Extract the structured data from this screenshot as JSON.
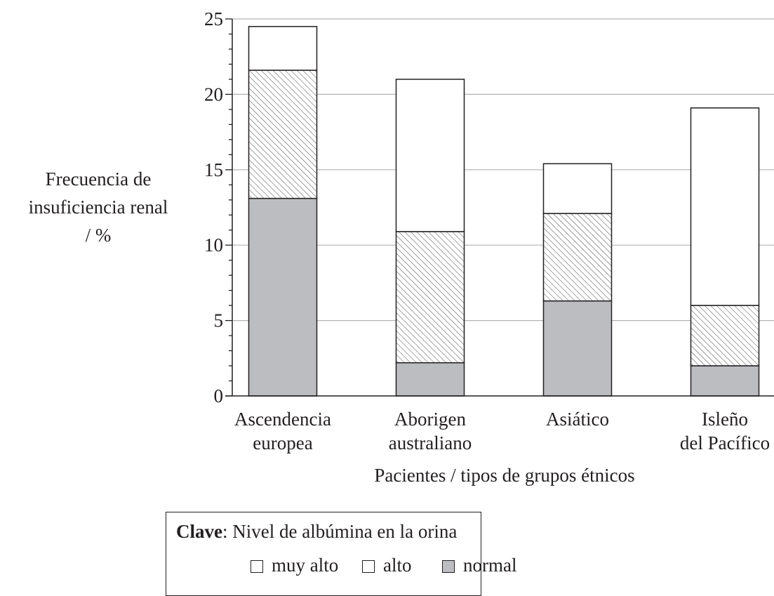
{
  "chart_data": {
    "type": "bar",
    "stacked": true,
    "categories": [
      [
        "Ascendencia",
        "europea"
      ],
      [
        "Aborigen",
        "australiano"
      ],
      [
        "Asiático",
        ""
      ],
      [
        "Isleño",
        "del Pacífico"
      ]
    ],
    "series": [
      {
        "name": "normal",
        "values": [
          13.1,
          2.2,
          6.3,
          2.0
        ],
        "fill": "#bcbdc0",
        "pattern": "solid"
      },
      {
        "name": "alto",
        "values": [
          8.5,
          8.7,
          5.8,
          4.0
        ],
        "fill": "#ffffff",
        "pattern": "hatch"
      },
      {
        "name": "muy alto",
        "values": [
          2.9,
          10.1,
          3.3,
          13.1
        ],
        "fill": "#ffffff",
        "pattern": "none"
      }
    ],
    "ylabel": [
      "Frecuencia de",
      "insuficiencia renal",
      "/ %"
    ],
    "xlabel": "Pacientes / tipos de grupos étnicos",
    "ylim": [
      0,
      25
    ],
    "yticks": [
      0,
      5,
      10,
      15,
      20,
      25
    ],
    "minor_tick_step": 1,
    "grid": true,
    "grid_color": "#b3b3b3",
    "legend": {
      "title_bold": "Clave",
      "title_rest": ":  Nivel de albúmina en la orina",
      "items": [
        "muy alto",
        "alto",
        "normal"
      ],
      "placement": "bottom"
    }
  }
}
